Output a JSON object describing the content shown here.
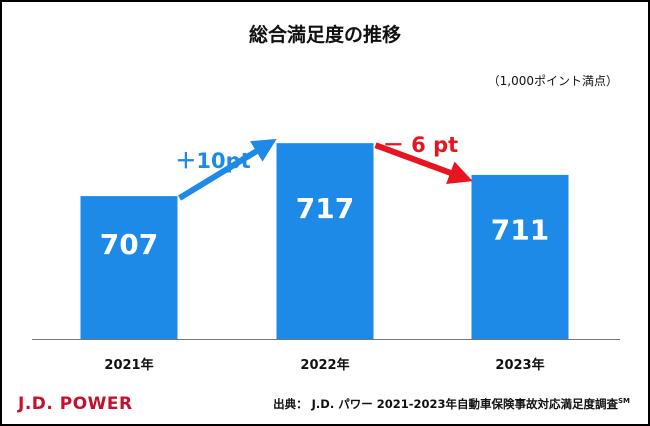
{
  "title": "総合満足度の推移",
  "unit_note": "（1,000ポイント満点）",
  "logo": "J.D. POWER",
  "source": {
    "label": "出典：",
    "text": "J.D. パワー 2021-2023年自動車保険事故対応満足度調査",
    "superscript": "SM"
  },
  "chart_data": {
    "type": "bar",
    "categories": [
      "2021年",
      "2022年",
      "2023年"
    ],
    "values": [
      707,
      717,
      711
    ],
    "data_labels": [
      "707",
      "717",
      "711"
    ],
    "changes": [
      {
        "from": 0,
        "to": 1,
        "label": "＋10pt",
        "color": "#1e8ae8"
      },
      {
        "from": 1,
        "to": 2,
        "label": "－ 6 pt",
        "color": "#e8141e"
      }
    ],
    "bar_color": "#1e8ae8",
    "ylim": [
      680,
      721
    ],
    "grid": false,
    "legend": "none"
  }
}
